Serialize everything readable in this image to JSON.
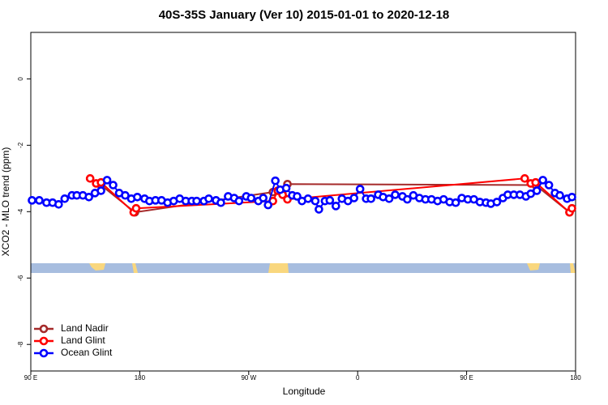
{
  "chart_data": {
    "type": "line",
    "title": "40S-35S January (Ver 10)   2015-01-01 to 2020-12-18",
    "xlabel": "Longitude",
    "ylabel": "XCO2 - MLO trend (ppm)",
    "xlim": [
      90,
      540
    ],
    "ylim": [
      -8.8,
      1.4
    ],
    "xticks": [
      {
        "value": 90,
        "label": "90 E"
      },
      {
        "value": 180,
        "label": "180"
      },
      {
        "value": 270,
        "label": "90 W"
      },
      {
        "value": 360,
        "label": "0"
      },
      {
        "value": 450,
        "label": "90 E"
      },
      {
        "value": 540,
        "label": "180"
      }
    ],
    "yticks": [
      0,
      -2,
      -4,
      -6,
      -8
    ],
    "legend": "bottomleft",
    "series": [
      {
        "name": "Land Nadir",
        "color": "#a52a2a",
        "x": [
          148,
          176,
          290,
          302,
          507,
          535
        ],
        "values": [
          -3.2,
          -4.02,
          -3.41,
          -3.17,
          -3.2,
          -4.02
        ]
      },
      {
        "name": "Land Glint",
        "color": "#ff0000",
        "x": [
          139,
          144,
          148,
          175,
          177,
          290,
          294,
          298,
          302,
          498,
          503,
          507,
          535,
          537
        ],
        "values": [
          -3.0,
          -3.15,
          -3.12,
          -4.02,
          -3.9,
          -3.68,
          -3.37,
          -3.49,
          -3.63,
          -3.0,
          -3.15,
          -3.12,
          -4.02,
          -3.9
        ]
      },
      {
        "name": "Ocean Glint",
        "color": "#0000ff",
        "x": [
          91,
          97,
          103,
          108,
          113,
          118,
          124,
          128,
          133,
          138,
          143,
          148,
          153,
          158,
          163,
          168,
          173,
          178,
          184,
          188,
          193,
          198,
          203,
          208,
          213,
          218,
          223,
          227,
          233,
          237,
          243,
          247,
          253,
          258,
          262,
          268,
          272,
          278,
          282,
          286,
          292,
          296,
          301,
          306,
          310,
          314,
          319,
          325,
          328,
          333,
          337,
          342,
          347,
          352,
          357,
          362,
          367,
          371,
          377,
          381,
          386,
          391,
          397,
          401,
          406,
          411,
          416,
          421,
          426,
          431,
          436,
          441,
          446,
          451,
          456,
          461,
          466,
          470,
          475,
          480,
          484,
          489,
          494,
          499,
          503,
          508,
          513,
          518,
          523,
          527,
          533,
          537
        ],
        "values": [
          -3.66,
          -3.66,
          -3.73,
          -3.73,
          -3.78,
          -3.61,
          -3.51,
          -3.51,
          -3.51,
          -3.56,
          -3.44,
          -3.37,
          -3.05,
          -3.2,
          -3.44,
          -3.51,
          -3.61,
          -3.56,
          -3.61,
          -3.68,
          -3.66,
          -3.66,
          -3.73,
          -3.68,
          -3.61,
          -3.68,
          -3.68,
          -3.68,
          -3.68,
          -3.61,
          -3.66,
          -3.73,
          -3.54,
          -3.59,
          -3.68,
          -3.54,
          -3.59,
          -3.68,
          -3.59,
          -3.8,
          -3.07,
          -3.34,
          -3.29,
          -3.51,
          -3.54,
          -3.68,
          -3.61,
          -3.68,
          -3.93,
          -3.68,
          -3.66,
          -3.83,
          -3.61,
          -3.68,
          -3.59,
          -3.32,
          -3.61,
          -3.61,
          -3.49,
          -3.56,
          -3.61,
          -3.49,
          -3.54,
          -3.63,
          -3.51,
          -3.59,
          -3.63,
          -3.63,
          -3.68,
          -3.63,
          -3.71,
          -3.73,
          -3.59,
          -3.63,
          -3.63,
          -3.71,
          -3.73,
          -3.76,
          -3.71,
          -3.59,
          -3.49,
          -3.49,
          -3.49,
          -3.54,
          -3.46,
          -3.37,
          -3.05,
          -3.2,
          -3.44,
          -3.51,
          -3.61,
          -3.56
        ]
      }
    ]
  }
}
